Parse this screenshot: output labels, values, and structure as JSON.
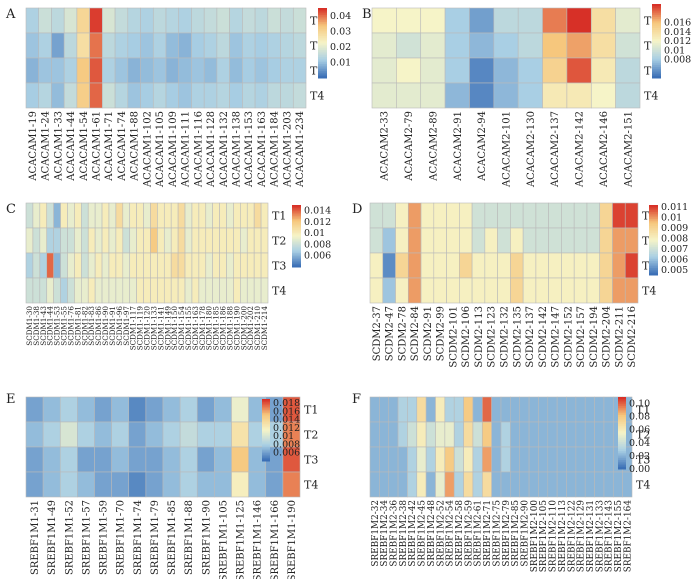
{
  "colors": {
    "low": "#3b6fb6",
    "midlow": "#a9cfe4",
    "mid": "#f6f4c8",
    "midhigh": "#f6c77d",
    "high": "#d73027",
    "grid": "#b9b9b9"
  },
  "chart_data": [
    {
      "type": "heatmap",
      "panel_label": "A",
      "rows": [
        "T1",
        "T2",
        "T3",
        "T4"
      ],
      "columns": [
        "ACACAM1-19",
        "ACACAM1-24",
        "ACACAM1-33",
        "ACACAM1-44",
        "ACACAM1-54",
        "ACACAM1-61",
        "ACACAM1-71",
        "ACACAM1-74",
        "ACACAM1-88",
        "ACACAM1-102",
        "ACACAM1-105",
        "ACACAM1-109",
        "ACACAM1-111",
        "ACACAM1-116",
        "ACACAM1-128",
        "ACACAM1-132",
        "ACACAM1-138",
        "ACACAM1-153",
        "ACACAM1-163",
        "ACACAM1-184",
        "ACACAM1-203",
        "ACACAM1-234"
      ],
      "values": [
        [
          0.012,
          0.016,
          0.014,
          0.018,
          0.03,
          0.044,
          0.018,
          0.015,
          0.013,
          0.012,
          0.014,
          0.013,
          0.012,
          0.014,
          0.015,
          0.016,
          0.013,
          0.015,
          0.014,
          0.016,
          0.015,
          0.016
        ],
        [
          0.01,
          0.012,
          0.006,
          0.014,
          0.028,
          0.04,
          0.014,
          0.012,
          0.011,
          0.01,
          0.012,
          0.009,
          0.008,
          0.011,
          0.012,
          0.014,
          0.01,
          0.012,
          0.011,
          0.012,
          0.013,
          0.014
        ],
        [
          0.008,
          0.01,
          0.01,
          0.012,
          0.033,
          0.042,
          0.012,
          0.01,
          0.008,
          0.009,
          0.01,
          0.008,
          0.009,
          0.01,
          0.009,
          0.012,
          0.009,
          0.011,
          0.01,
          0.011,
          0.012,
          0.012
        ],
        [
          0.011,
          0.013,
          0.009,
          0.015,
          0.032,
          0.041,
          0.016,
          0.013,
          0.01,
          0.011,
          0.013,
          0.011,
          0.01,
          0.012,
          0.012,
          0.013,
          0.011,
          0.013,
          0.012,
          0.014,
          0.014,
          0.015
        ]
      ],
      "vmin": 0.0,
      "vmax": 0.045,
      "colorbar_ticks": [
        0.04,
        0.03,
        0.02,
        0.01
      ]
    },
    {
      "type": "heatmap",
      "panel_label": "B",
      "rows": [
        "T1",
        "T2",
        "T3",
        "T4"
      ],
      "columns": [
        "ACACAM2-33",
        "ACACAM2-79",
        "ACACAM2-89",
        "ACACAM2-91",
        "ACACAM2-94",
        "ACACAM2-101",
        "ACACAM2-130",
        "ACACAM2-137",
        "ACACAM2-142",
        "ACACAM2-146",
        "ACACAM2-151"
      ],
      "values": [
        [
          0.012,
          0.012,
          0.012,
          0.008,
          0.006,
          0.009,
          0.009,
          0.018,
          0.02,
          0.014,
          0.011
        ],
        [
          0.011,
          0.01,
          0.011,
          0.008,
          0.007,
          0.008,
          0.009,
          0.016,
          0.017,
          0.014,
          0.01
        ],
        [
          0.011,
          0.012,
          0.011,
          0.008,
          0.005,
          0.007,
          0.008,
          0.015,
          0.019,
          0.013,
          0.009
        ],
        [
          0.011,
          0.011,
          0.011,
          0.007,
          0.005,
          0.007,
          0.008,
          0.013,
          0.013,
          0.012,
          0.009
        ]
      ],
      "vmin": 0.004,
      "vmax": 0.02,
      "colorbar_ticks": [
        0.016,
        0.014,
        0.012,
        0.01,
        0.008
      ]
    },
    {
      "type": "heatmap",
      "panel_label": "C",
      "rows": [
        "T1",
        "T2",
        "T3",
        "T4"
      ],
      "columns": [
        "SCDM1-30",
        "SCDM1-38",
        "SCDM1-43",
        "SCDM1-44",
        "SCDM1-53",
        "SCDM1-55",
        "SCDM1-76",
        "SCDM1-81",
        "SCDM1-82",
        "SCDM1-83",
        "SCDM1-86",
        "SCDM1-90",
        "SCDM1-91",
        "SCDM1-96",
        "SCDM1-97",
        "SCDM1-117",
        "SCDM1-119",
        "SCDM1-120",
        "SCDM1-133",
        "SCDM1-141",
        "SCDM1-149",
        "SCDM1-150",
        "SCDM1-154",
        "SCDM1-155",
        "SCDM1-163",
        "SCDM1-178",
        "SCDM1-180",
        "SCDM1-185",
        "SCDM1-186",
        "SCDM1-188",
        "SCDM1-190",
        "SCDM1-200",
        "SCDM1-202",
        "SCDM1-210",
        "SCDM1-214"
      ],
      "values": [
        [
          0.008,
          0.009,
          0.01,
          0.008,
          0.006,
          0.01,
          0.009,
          0.01,
          0.008,
          0.009,
          0.009,
          0.01,
          0.009,
          0.011,
          0.009,
          0.01,
          0.01,
          0.009,
          0.011,
          0.01,
          0.01,
          0.01,
          0.011,
          0.009,
          0.01,
          0.01,
          0.009,
          0.01,
          0.01,
          0.009,
          0.01,
          0.01,
          0.01,
          0.011,
          0.01
        ],
        [
          0.009,
          0.008,
          0.009,
          0.007,
          0.007,
          0.008,
          0.008,
          0.009,
          0.008,
          0.01,
          0.009,
          0.01,
          0.009,
          0.01,
          0.008,
          0.009,
          0.01,
          0.01,
          0.012,
          0.01,
          0.009,
          0.01,
          0.011,
          0.009,
          0.01,
          0.01,
          0.01,
          0.01,
          0.01,
          0.01,
          0.01,
          0.009,
          0.01,
          0.01,
          0.01
        ],
        [
          0.007,
          0.008,
          0.007,
          0.014,
          0.006,
          0.008,
          0.009,
          0.01,
          0.008,
          0.009,
          0.01,
          0.009,
          0.01,
          0.01,
          0.009,
          0.01,
          0.01,
          0.01,
          0.01,
          0.01,
          0.01,
          0.011,
          0.011,
          0.01,
          0.01,
          0.01,
          0.009,
          0.01,
          0.01,
          0.009,
          0.01,
          0.01,
          0.01,
          0.01,
          0.01
        ],
        [
          0.008,
          0.008,
          0.008,
          0.009,
          0.008,
          0.007,
          0.008,
          0.009,
          0.009,
          0.01,
          0.009,
          0.009,
          0.009,
          0.009,
          0.009,
          0.009,
          0.01,
          0.01,
          0.01,
          0.01,
          0.01,
          0.01,
          0.01,
          0.009,
          0.01,
          0.009,
          0.009,
          0.009,
          0.009,
          0.009,
          0.01,
          0.009,
          0.009,
          0.009,
          0.009
        ]
      ],
      "vmin": 0.004,
      "vmax": 0.015,
      "colorbar_ticks": [
        0.014,
        0.012,
        0.01,
        0.008,
        0.006
      ]
    },
    {
      "type": "heatmap",
      "panel_label": "D",
      "rows": [
        "T1",
        "T2",
        "T3",
        "T4"
      ],
      "columns": [
        "SCDM2-37",
        "SCDM2-47",
        "SCDM2-78",
        "SCDM2-84",
        "SCDM2-91",
        "SCDM2-99",
        "SCDM2-101",
        "SCDM2-106",
        "SCDM2-113",
        "SCDM2-123",
        "SCDM2-132",
        "SCDM2-135",
        "SCDM2-137",
        "SCDM2-142",
        "SCDM2-147",
        "SCDM2-152",
        "SCDM2-157",
        "SCDM2-194",
        "SCDM2-204",
        "SCDM2-211",
        "SCDM2-216"
      ],
      "values": [
        [
          0.007,
          0.007,
          0.008,
          0.01,
          0.008,
          0.008,
          0.008,
          0.008,
          0.007,
          0.007,
          0.007,
          0.007,
          0.007,
          0.007,
          0.007,
          0.007,
          0.007,
          0.007,
          0.009,
          0.011,
          0.011
        ],
        [
          0.007,
          0.006,
          0.008,
          0.01,
          0.008,
          0.008,
          0.008,
          0.008,
          0.007,
          0.008,
          0.007,
          0.008,
          0.007,
          0.007,
          0.007,
          0.007,
          0.007,
          0.007,
          0.009,
          0.01,
          0.01
        ],
        [
          0.008,
          0.005,
          0.009,
          0.01,
          0.008,
          0.008,
          0.008,
          0.009,
          0.008,
          0.008,
          0.008,
          0.009,
          0.008,
          0.008,
          0.008,
          0.008,
          0.008,
          0.008,
          0.009,
          0.01,
          0.011
        ],
        [
          0.008,
          0.006,
          0.008,
          0.01,
          0.008,
          0.008,
          0.008,
          0.008,
          0.008,
          0.008,
          0.008,
          0.009,
          0.008,
          0.008,
          0.008,
          0.008,
          0.008,
          0.008,
          0.009,
          0.01,
          0.01
        ]
      ],
      "vmin": 0.0045,
      "vmax": 0.0112,
      "colorbar_ticks": [
        0.011,
        0.01,
        0.009,
        0.008,
        0.007,
        0.006,
        0.005
      ]
    },
    {
      "type": "heatmap",
      "panel_label": "E",
      "rows": [
        "T1",
        "T2",
        "T3",
        "T4"
      ],
      "columns": [
        "SREBF1M1-31",
        "SREBF1M1-49",
        "SREBF1M1-52",
        "SREBF1M1-57",
        "SREBF1M1-59",
        "SREBF1M1-70",
        "SREBF1M1-74",
        "SREBF1M1-79",
        "SREBF1M1-85",
        "SREBF1M1-88",
        "SREBF1M1-90",
        "SREBF1M1-105",
        "SREBF1M1-125",
        "SREBF1M1-146",
        "SREBF1M1-166",
        "SREBF1M1-190"
      ],
      "values": [
        [
          0.006,
          0.007,
          0.008,
          0.007,
          0.006,
          0.007,
          0.005,
          0.006,
          0.007,
          0.008,
          0.006,
          0.007,
          0.011,
          0.007,
          0.006,
          0.018
        ],
        [
          0.007,
          0.008,
          0.01,
          0.008,
          0.007,
          0.008,
          0.006,
          0.007,
          0.008,
          0.009,
          0.008,
          0.008,
          0.013,
          0.008,
          0.008,
          0.017
        ],
        [
          0.006,
          0.007,
          0.008,
          0.006,
          0.006,
          0.007,
          0.006,
          0.006,
          0.007,
          0.008,
          0.006,
          0.007,
          0.015,
          0.007,
          0.006,
          0.018
        ],
        [
          0.006,
          0.007,
          0.008,
          0.007,
          0.006,
          0.006,
          0.005,
          0.006,
          0.007,
          0.008,
          0.007,
          0.007,
          0.012,
          0.007,
          0.006,
          0.017
        ]
      ],
      "vmin": 0.004,
      "vmax": 0.019,
      "colorbar_ticks": [
        0.018,
        0.016,
        0.014,
        0.012,
        0.01,
        0.008,
        0.006
      ]
    },
    {
      "type": "heatmap",
      "panel_label": "F",
      "rows": [
        "T1",
        "T2",
        "T3",
        "T4"
      ],
      "columns": [
        "SREBF1M2-32",
        "SREBF1M2-34",
        "SREBF1M2-36",
        "SREBF1M2-38",
        "SREBF1M2-42",
        "SREBF1M2-45",
        "SREBF1M2-48",
        "SREBF1M2-52",
        "SREBF1M2-54",
        "SREBF1M2-58",
        "SREBF1M2-59",
        "SREBF1M2-61",
        "SREBF1M2-71",
        "SREBF1M2-75",
        "SREBF1M2-79",
        "SREBF1M2-85",
        "SREBF1M2-90",
        "SREBF1M2-100",
        "SREBF1M2-105",
        "SREBF1M2-110",
        "SREBF1M2-113",
        "SREBF1M2-122",
        "SREBF1M2-129",
        "SREBF1M2-131",
        "SREBF1M2-133",
        "SREBF1M2-143",
        "SREBF1M2-155",
        "SREBF1M2-164"
      ],
      "values": [
        [
          0.02,
          0.02,
          0.02,
          0.03,
          0.03,
          0.07,
          0.02,
          0.06,
          0.03,
          0.03,
          0.08,
          0.02,
          0.1,
          0.02,
          0.02,
          0.02,
          0.02,
          0.02,
          0.02,
          0.02,
          0.02,
          0.02,
          0.02,
          0.02,
          0.02,
          0.02,
          0.02,
          0.02
        ],
        [
          0.02,
          0.02,
          0.02,
          0.03,
          0.04,
          0.06,
          0.04,
          0.05,
          0.05,
          0.03,
          0.07,
          0.04,
          0.08,
          0.02,
          0.03,
          0.02,
          0.02,
          0.02,
          0.02,
          0.02,
          0.02,
          0.02,
          0.02,
          0.02,
          0.02,
          0.02,
          0.02,
          0.02
        ],
        [
          0.02,
          0.02,
          0.02,
          0.02,
          0.03,
          0.05,
          0.03,
          0.06,
          0.08,
          0.04,
          0.06,
          0.03,
          0.09,
          0.02,
          0.03,
          0.02,
          0.02,
          0.02,
          0.02,
          0.02,
          0.02,
          0.02,
          0.02,
          0.02,
          0.02,
          0.02,
          0.02,
          0.02
        ],
        [
          0.02,
          0.02,
          0.02,
          0.02,
          0.03,
          0.06,
          0.02,
          0.05,
          0.09,
          0.03,
          0.07,
          0.03,
          0.07,
          0.02,
          0.02,
          0.02,
          0.02,
          0.02,
          0.02,
          0.02,
          0.02,
          0.02,
          0.02,
          0.02,
          0.02,
          0.02,
          0.02,
          0.02
        ]
      ],
      "vmin": 0.0,
      "vmax": 0.11,
      "colorbar_ticks": [
        0.1,
        0.08,
        0.06,
        0.04,
        0.02,
        0.0
      ]
    }
  ]
}
